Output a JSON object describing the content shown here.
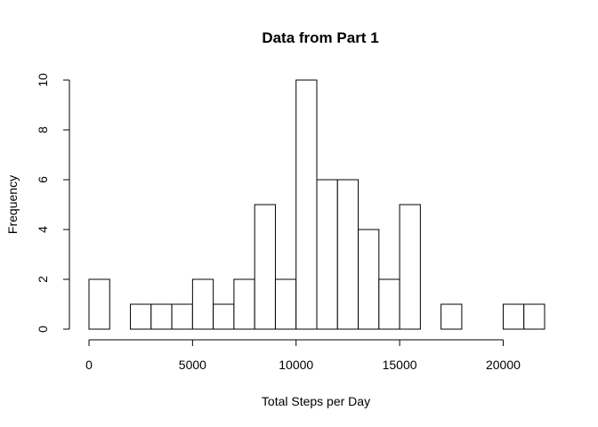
{
  "chart_data": {
    "type": "bar",
    "title": "Data from Part 1",
    "xlabel": "Total Steps per Day",
    "ylabel": "Frequency",
    "bin_width": 1000,
    "bin_starts": [
      0,
      1000,
      2000,
      3000,
      4000,
      5000,
      6000,
      7000,
      8000,
      9000,
      10000,
      11000,
      12000,
      13000,
      14000,
      15000,
      16000,
      17000,
      18000,
      19000,
      20000,
      21000
    ],
    "values": [
      2,
      0,
      1,
      1,
      1,
      2,
      1,
      2,
      5,
      2,
      10,
      6,
      6,
      4,
      2,
      5,
      0,
      1,
      0,
      0,
      1,
      1
    ],
    "xlim": [
      0,
      22000
    ],
    "ylim": [
      0,
      10
    ],
    "x_ticks": [
      0,
      5000,
      10000,
      15000,
      20000
    ],
    "y_ticks": [
      0,
      2,
      4,
      6,
      8,
      10
    ],
    "grid": false
  }
}
